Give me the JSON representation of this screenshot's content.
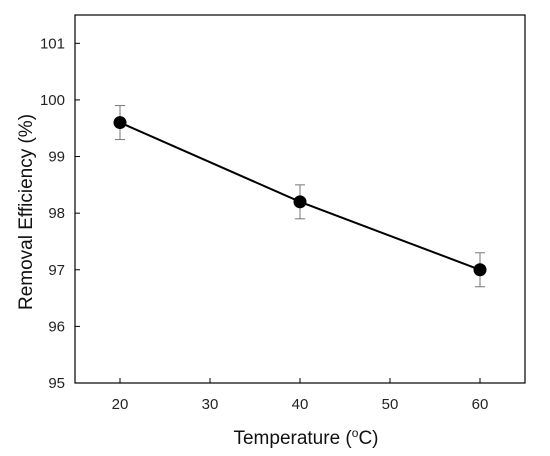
{
  "chart_data": {
    "type": "line",
    "xlabel": "Temperature (",
    "xlabel_sup": "o",
    "xlabel_end": "C)",
    "ylabel": "Removal Efficiency (%)",
    "x": [
      20,
      40,
      60
    ],
    "y": [
      99.6,
      98.2,
      97.0
    ],
    "error": [
      0.3,
      0.3,
      0.3
    ],
    "xlim": [
      15,
      65
    ],
    "ylim": [
      95,
      101.5
    ],
    "xticks": [
      20,
      30,
      40,
      50,
      60
    ],
    "yticks": [
      95,
      96,
      97,
      98,
      99,
      100,
      101
    ],
    "grid": false,
    "legend": "none",
    "line_color": "#000000",
    "marker_color": "#000000",
    "errorbar_color": "#777777"
  }
}
